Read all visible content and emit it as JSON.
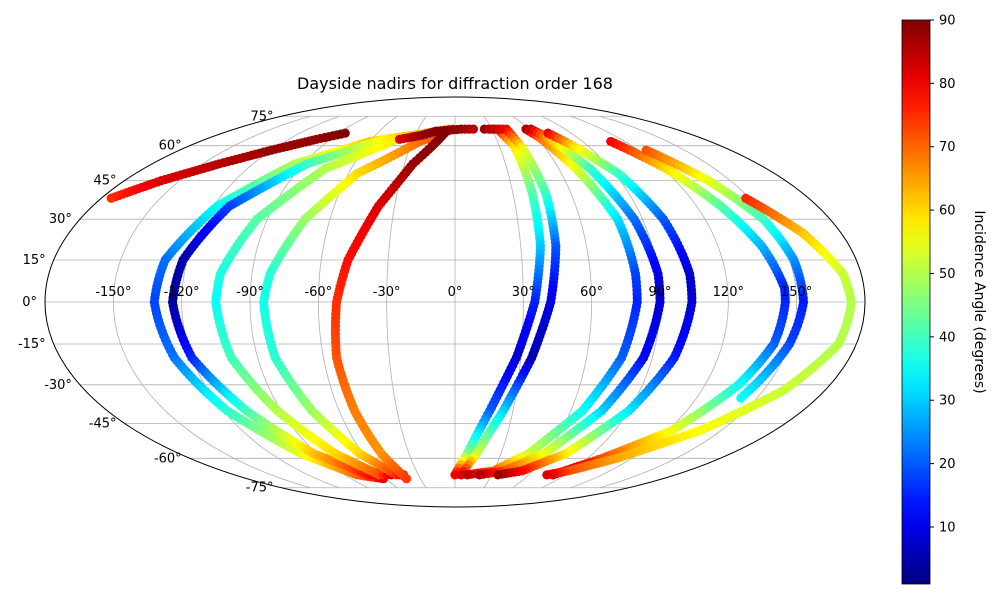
{
  "chart_data": {
    "type": "scatter",
    "projection": "mollweide",
    "title": "Dayside nadirs for diffraction order 168",
    "xlabel": "",
    "ylabel": "",
    "grid": true,
    "lon_ticks": [
      -150,
      -120,
      -90,
      -60,
      -30,
      0,
      30,
      60,
      90,
      120,
      150
    ],
    "lon_tick_labels": [
      "-150°",
      "-120°",
      "-90°",
      "-60°",
      "-30°",
      "0°",
      "30°",
      "60°",
      "90°",
      "120°",
      "150°"
    ],
    "lat_ticks": [
      75,
      60,
      45,
      30,
      15,
      0,
      -15,
      -30,
      -45,
      -60,
      -75
    ],
    "lat_tick_labels": [
      "75°",
      "60°",
      "45°",
      "30°",
      "15°",
      "0°",
      "-15°",
      "-30°",
      "-45°",
      "-60°",
      "-75°"
    ],
    "colorbar": {
      "label": "Incidence Angle (degrees)",
      "colormap": "jet",
      "range": [
        1,
        90
      ],
      "ticks": [
        10,
        20,
        30,
        40,
        50,
        60,
        70,
        80,
        90
      ],
      "tick_labels": [
        "10",
        "20",
        "30",
        "40",
        "50",
        "60",
        "70",
        "80",
        "90"
      ]
    },
    "series": [
      {
        "points": [
          [
            -175,
            38,
            75
          ],
          [
            -160,
            45,
            82
          ],
          [
            -140,
            52,
            85
          ],
          [
            -120,
            58,
            88
          ],
          [
            -100,
            63,
            88
          ],
          [
            -85,
            66,
            90
          ]
        ]
      },
      {
        "points": [
          [
            -20,
            66,
            72
          ],
          [
            -60,
            62,
            62
          ],
          [
            -95,
            52,
            50
          ],
          [
            -118,
            35,
            35
          ],
          [
            -130,
            15,
            22
          ],
          [
            -132,
            0,
            18
          ],
          [
            -128,
            -20,
            22
          ],
          [
            -118,
            -40,
            38
          ],
          [
            -100,
            -58,
            55
          ],
          [
            -80,
            -68,
            70
          ],
          [
            -62,
            -70,
            80
          ],
          [
            -58,
            -66,
            88
          ]
        ]
      },
      {
        "points": [
          [
            -10,
            67,
            70
          ],
          [
            -52,
            63,
            58
          ],
          [
            -88,
            52,
            40
          ],
          [
            -112,
            35,
            18
          ],
          [
            -122,
            15,
            5
          ],
          [
            -124,
            0,
            3
          ],
          [
            -120,
            -20,
            15
          ],
          [
            -108,
            -40,
            40
          ],
          [
            -92,
            -58,
            62
          ],
          [
            -70,
            -68,
            78
          ],
          [
            -58,
            -68,
            86
          ]
        ]
      },
      {
        "points": [
          [
            -5,
            68,
            66
          ],
          [
            -40,
            64,
            60
          ],
          [
            -75,
            50,
            50
          ],
          [
            -95,
            30,
            42
          ],
          [
            -104,
            10,
            37
          ],
          [
            -105,
            0,
            35
          ],
          [
            -102,
            -20,
            40
          ],
          [
            -92,
            -40,
            50
          ],
          [
            -78,
            -58,
            60
          ],
          [
            -62,
            -68,
            72
          ],
          [
            -52,
            -68,
            82
          ]
        ]
      },
      {
        "points": [
          [
            -2,
            68,
            72
          ],
          [
            -25,
            62,
            70
          ],
          [
            -55,
            48,
            60
          ],
          [
            -72,
            30,
            48
          ],
          [
            -82,
            10,
            38
          ],
          [
            -84,
            0,
            36
          ],
          [
            -82,
            -20,
            38
          ],
          [
            -74,
            -40,
            48
          ],
          [
            -62,
            -58,
            60
          ],
          [
            -48,
            -68,
            75
          ],
          [
            -42,
            -68,
            84
          ]
        ]
      },
      {
        "points": [
          [
            -40,
            63,
            82
          ],
          [
            -25,
            65,
            88
          ],
          [
            -15,
            67,
            90
          ],
          [
            5,
            68,
            88
          ],
          [
            15,
            68,
            85
          ]
        ]
      },
      {
        "points": [
          [
            -8,
            66,
            90
          ],
          [
            -25,
            52,
            88
          ],
          [
            -38,
            35,
            82
          ],
          [
            -48,
            15,
            78
          ],
          [
            -52,
            0,
            75
          ],
          [
            -54,
            -20,
            72
          ],
          [
            -52,
            -40,
            68
          ],
          [
            -48,
            -58,
            66
          ],
          [
            -42,
            -70,
            74
          ]
        ]
      },
      {
        "points": [
          [
            24,
            68,
            88
          ],
          [
            35,
            68,
            78
          ],
          [
            40,
            60,
            60
          ],
          [
            40,
            40,
            42
          ],
          [
            39,
            20,
            30
          ],
          [
            35,
            0,
            15
          ],
          [
            28,
            -20,
            8
          ],
          [
            18,
            -40,
            20
          ],
          [
            8,
            -58,
            45
          ],
          [
            0,
            -68,
            80
          ]
        ]
      },
      {
        "points": [
          [
            30,
            68,
            85
          ],
          [
            42,
            68,
            80
          ],
          [
            45,
            58,
            55
          ],
          [
            47,
            40,
            40
          ],
          [
            46,
            20,
            20
          ],
          [
            42,
            0,
            10
          ],
          [
            35,
            -20,
            5
          ],
          [
            25,
            -40,
            30
          ],
          [
            14,
            -58,
            52
          ],
          [
            5,
            -68,
            82
          ]
        ]
      },
      {
        "points": [
          [
            58,
            68,
            86
          ],
          [
            62,
            64,
            70
          ],
          [
            70,
            50,
            55
          ],
          [
            78,
            30,
            32
          ],
          [
            80,
            10,
            18
          ],
          [
            80,
            0,
            15
          ],
          [
            76,
            -20,
            20
          ],
          [
            66,
            -40,
            35
          ],
          [
            48,
            -58,
            52
          ],
          [
            30,
            -66,
            70
          ],
          [
            10,
            -68,
            85
          ]
        ]
      },
      {
        "points": [
          [
            62,
            68,
            84
          ],
          [
            68,
            64,
            65
          ],
          [
            78,
            50,
            40
          ],
          [
            86,
            30,
            22
          ],
          [
            90,
            10,
            10
          ],
          [
            90,
            0,
            8
          ],
          [
            86,
            -20,
            12
          ],
          [
            76,
            -40,
            30
          ],
          [
            58,
            -58,
            55
          ],
          [
            38,
            -66,
            72
          ],
          [
            20,
            -68,
            86
          ]
        ]
      },
      {
        "points": [
          [
            72,
            66,
            80
          ],
          [
            80,
            60,
            60
          ],
          [
            92,
            48,
            40
          ],
          [
            100,
            30,
            20
          ],
          [
            104,
            10,
            8
          ],
          [
            104,
            0,
            8
          ],
          [
            100,
            -20,
            14
          ],
          [
            90,
            -40,
            32
          ],
          [
            72,
            -58,
            58
          ],
          [
            52,
            -66,
            78
          ],
          [
            35,
            -68,
            88
          ]
        ]
      },
      {
        "points": [
          [
            110,
            62,
            80
          ],
          [
            122,
            50,
            60
          ],
          [
            132,
            35,
            42
          ],
          [
            140,
            20,
            28
          ],
          [
            145,
            5,
            15
          ],
          [
            145,
            0,
            15
          ],
          [
            143,
            -15,
            20
          ],
          [
            136,
            -30,
            35
          ],
          [
            122,
            -48,
            55
          ],
          [
            100,
            -60,
            72
          ],
          [
            80,
            -68,
            88
          ]
        ]
      },
      {
        "points": [
          [
            125,
            58,
            72
          ],
          [
            138,
            45,
            55
          ],
          [
            148,
            30,
            40
          ],
          [
            152,
            15,
            25
          ],
          [
            153,
            0,
            14
          ],
          [
            150,
            -15,
            18
          ],
          [
            142,
            -35,
            35
          ]
        ]
      },
      {
        "points": [
          [
            148,
            38,
            76
          ],
          [
            162,
            25,
            62
          ],
          [
            172,
            10,
            52
          ],
          [
            174,
            0,
            50
          ],
          [
            172,
            -15,
            50
          ],
          [
            160,
            -32,
            52
          ],
          [
            138,
            -48,
            56
          ],
          [
            110,
            -60,
            64
          ],
          [
            88,
            -66,
            72
          ],
          [
            75,
            -68,
            82
          ]
        ]
      }
    ]
  }
}
